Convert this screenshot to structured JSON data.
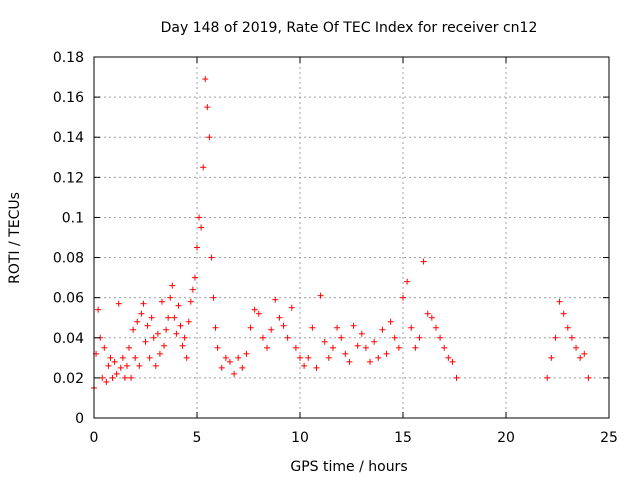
{
  "chart_data": {
    "type": "scatter",
    "title": "Day 148 of 2019, Rate Of TEC Index for receiver cn12",
    "xlabel": "GPS time / hours",
    "ylabel": "ROTI / TECUs",
    "xlim": [
      0,
      25
    ],
    "ylim": [
      0,
      0.18
    ],
    "xticks": [
      "0",
      "5",
      "10",
      "15",
      "20",
      "25"
    ],
    "yticks": [
      "0",
      "0.02",
      "0.04",
      "0.06",
      "0.08",
      "0.1",
      "0.12",
      "0.14",
      "0.16",
      "0.18"
    ],
    "grid": true,
    "marker": "+",
    "color": "#ff0000",
    "series": [
      {
        "x": [
          0.0,
          0.1,
          0.2,
          0.3,
          0.4,
          0.5,
          0.6,
          0.7,
          0.8,
          0.9,
          1.0,
          1.1,
          1.2,
          1.3,
          1.4,
          1.5,
          1.6,
          1.7,
          1.8,
          1.9,
          2.0,
          2.1,
          2.2,
          2.3,
          2.4,
          2.5,
          2.6,
          2.7,
          2.8,
          2.9,
          3.0,
          3.1,
          3.2,
          3.3,
          3.4,
          3.5,
          3.6,
          3.7,
          3.8,
          3.9,
          4.0,
          4.1,
          4.2,
          4.3,
          4.4,
          4.5,
          4.6,
          4.7,
          4.8,
          4.9,
          5.0,
          5.1,
          5.2,
          5.3,
          5.4,
          5.5,
          5.6,
          5.7,
          5.8,
          5.9,
          6.0,
          6.2,
          6.4,
          6.6,
          6.8,
          7.0,
          7.2,
          7.4,
          7.6,
          7.8,
          8.0,
          8.2,
          8.4,
          8.6,
          8.8,
          9.0,
          9.2,
          9.4,
          9.6,
          9.8,
          10.0,
          10.2,
          10.4,
          10.6,
          10.8,
          11.0,
          11.2,
          11.4,
          11.6,
          11.8,
          12.0,
          12.2,
          12.4,
          12.6,
          12.8,
          13.0,
          13.2,
          13.4,
          13.6,
          13.8,
          14.0,
          14.2,
          14.4,
          14.6,
          14.8,
          15.0,
          15.2,
          15.4,
          15.6,
          15.8,
          16.0,
          16.2,
          16.4,
          16.6,
          16.8,
          17.0,
          17.2,
          17.4,
          17.6,
          22.0,
          22.2,
          22.4,
          22.6,
          22.8,
          23.0,
          23.2,
          23.4,
          23.6,
          23.8,
          24.0
        ],
        "y": [
          0.015,
          0.032,
          0.054,
          0.04,
          0.02,
          0.035,
          0.018,
          0.026,
          0.03,
          0.02,
          0.028,
          0.022,
          0.057,
          0.025,
          0.03,
          0.02,
          0.026,
          0.035,
          0.02,
          0.044,
          0.03,
          0.048,
          0.026,
          0.052,
          0.057,
          0.038,
          0.046,
          0.03,
          0.05,
          0.04,
          0.026,
          0.042,
          0.032,
          0.058,
          0.036,
          0.044,
          0.05,
          0.06,
          0.066,
          0.05,
          0.042,
          0.056,
          0.046,
          0.036,
          0.04,
          0.03,
          0.048,
          0.058,
          0.064,
          0.07,
          0.085,
          0.1,
          0.095,
          0.125,
          0.169,
          0.155,
          0.14,
          0.08,
          0.06,
          0.045,
          0.035,
          0.025,
          0.03,
          0.028,
          0.022,
          0.03,
          0.025,
          0.032,
          0.045,
          0.054,
          0.052,
          0.04,
          0.035,
          0.044,
          0.059,
          0.05,
          0.046,
          0.04,
          0.055,
          0.035,
          0.03,
          0.026,
          0.03,
          0.045,
          0.025,
          0.061,
          0.038,
          0.03,
          0.035,
          0.045,
          0.04,
          0.032,
          0.028,
          0.046,
          0.036,
          0.042,
          0.035,
          0.028,
          0.038,
          0.03,
          0.044,
          0.032,
          0.048,
          0.04,
          0.035,
          0.06,
          0.068,
          0.045,
          0.035,
          0.04,
          0.078,
          0.052,
          0.05,
          0.045,
          0.04,
          0.035,
          0.03,
          0.028,
          0.02,
          0.02,
          0.03,
          0.04,
          0.058,
          0.052,
          0.045,
          0.04,
          0.035,
          0.03,
          0.032,
          0.02
        ]
      }
    ]
  }
}
